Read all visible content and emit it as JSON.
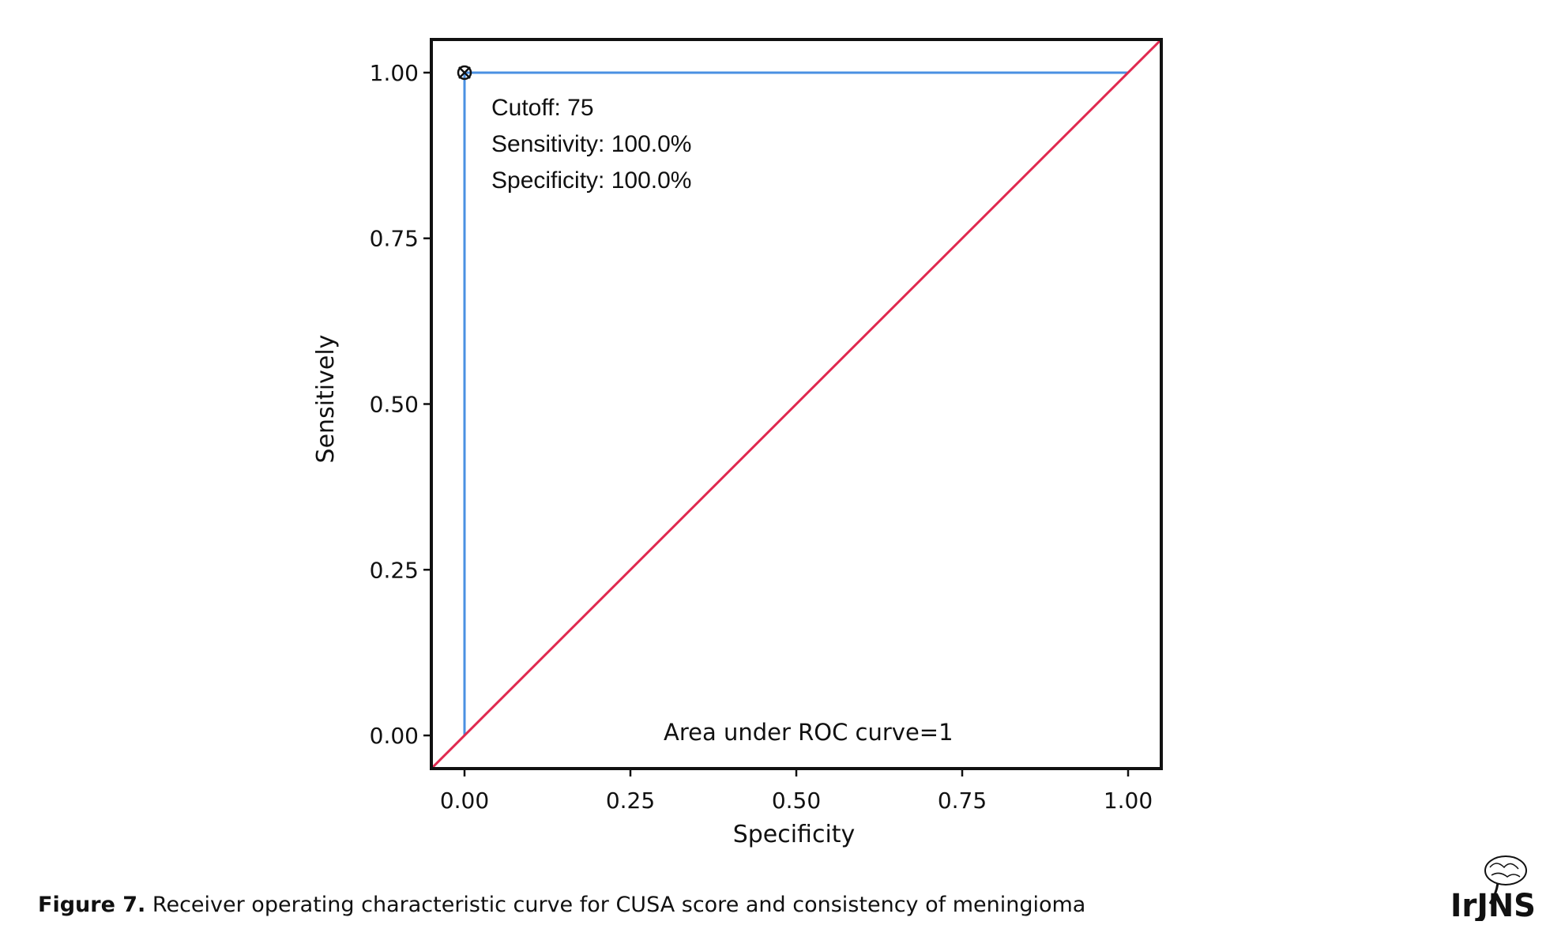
{
  "chart_data": {
    "type": "line",
    "title": "",
    "xlabel": "Specificity",
    "ylabel": "Sensitively",
    "xlim": [
      -0.05,
      1.05
    ],
    "ylim": [
      -0.05,
      1.05
    ],
    "x_ticks": [
      0.0,
      0.25,
      0.5,
      0.75,
      1.0
    ],
    "x_tick_labels": [
      "0.00",
      "0.25",
      "0.50",
      "0.75",
      "1.00"
    ],
    "y_ticks": [
      0.0,
      0.25,
      0.5,
      0.75,
      1.0
    ],
    "y_tick_labels": [
      "0.00",
      "0.25",
      "0.50",
      "0.75",
      "1.00"
    ],
    "grid": false,
    "series": [
      {
        "color": "#4a90e2",
        "x": [
          0.0,
          0.0,
          1.0
        ],
        "y": [
          0.0,
          1.0,
          1.0
        ]
      },
      {
        "color": "#e0294f",
        "x": [
          -0.05,
          1.05
        ],
        "y": [
          -0.05,
          1.05
        ]
      }
    ],
    "cutoff_point": {
      "x": 0.0,
      "y": 1.0
    },
    "annotations": {
      "cutoff": "Cutoff: 75",
      "sensitivity": "Sensitivity: 100.0%",
      "specificity": "Specificity: 100.0%",
      "auc": "Area under ROC curve=1"
    }
  },
  "caption": {
    "label": "Figure 7.",
    "text": " Receiver operating characteristic curve for CUSA score and consistency of meningioma"
  },
  "logo": {
    "text": "IrJNS"
  }
}
